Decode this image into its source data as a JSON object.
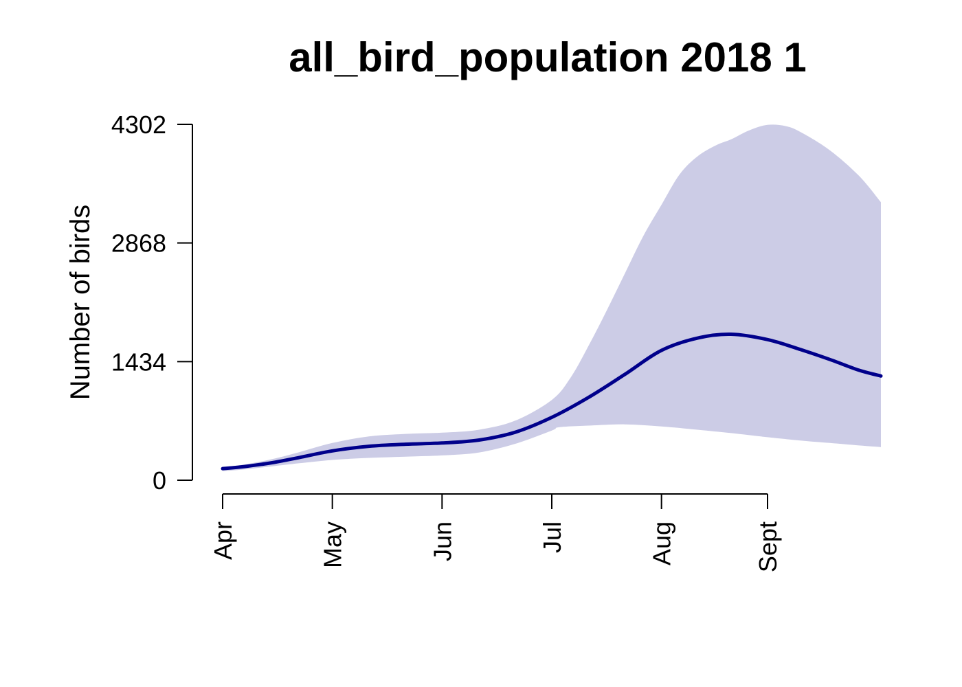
{
  "chart_data": {
    "type": "area",
    "title": "all_bird_population 2018 1",
    "xlabel": "",
    "ylabel": "Number of birds",
    "x_axis": {
      "type": "date",
      "range": [
        "2018-04-01",
        "2018-09-28"
      ],
      "ticks": [
        {
          "label": "Apr",
          "date": "2018-04-01"
        },
        {
          "label": "May",
          "date": "2018-05-01"
        },
        {
          "label": "Jun",
          "date": "2018-05-31"
        },
        {
          "label": "Jul",
          "date": "2018-06-30"
        },
        {
          "label": "Aug",
          "date": "2018-07-30"
        },
        {
          "label": "Sept",
          "date": "2018-08-28"
        }
      ]
    },
    "y_axis": {
      "ylim": [
        0,
        4302
      ],
      "ticks": [
        0,
        1434,
        2868,
        4302
      ]
    },
    "grid": false,
    "legend": "none",
    "colors": {
      "line": "#00008b",
      "band": "#ccccE6"
    },
    "series": [
      {
        "role": "estimate",
        "x": [
          "2018-04-01",
          "2018-04-07",
          "2018-04-15",
          "2018-04-22",
          "2018-05-01",
          "2018-05-11",
          "2018-05-21",
          "2018-05-31",
          "2018-06-10",
          "2018-06-20",
          "2018-06-30",
          "2018-07-10",
          "2018-07-20",
          "2018-07-30",
          "2018-08-09",
          "2018-08-18",
          "2018-08-28",
          "2018-09-06",
          "2018-09-14",
          "2018-09-22",
          "2018-09-28"
        ],
        "y": [
          140,
          165,
          215,
          275,
          355,
          410,
          435,
          450,
          485,
          580,
          760,
          1000,
          1280,
          1570,
          1720,
          1765,
          1700,
          1580,
          1460,
          1330,
          1260
        ]
      },
      {
        "role": "lower",
        "x": [
          "2018-04-01",
          "2018-04-07",
          "2018-04-15",
          "2018-04-22",
          "2018-05-01",
          "2018-05-11",
          "2018-05-21",
          "2018-05-31",
          "2018-06-10",
          "2018-06-20",
          "2018-06-30",
          "2018-07-02",
          "2018-07-10",
          "2018-07-20",
          "2018-07-30",
          "2018-08-09",
          "2018-08-18",
          "2018-08-28",
          "2018-09-06",
          "2018-09-14",
          "2018-09-22",
          "2018-09-28"
        ],
        "y": [
          110,
          130,
          170,
          205,
          245,
          270,
          285,
          300,
          335,
          440,
          600,
          640,
          660,
          675,
          650,
          610,
          570,
          520,
          480,
          450,
          420,
          400
        ]
      },
      {
        "role": "upper",
        "x": [
          "2018-04-01",
          "2018-04-07",
          "2018-04-15",
          "2018-04-22",
          "2018-05-01",
          "2018-05-11",
          "2018-05-21",
          "2018-05-31",
          "2018-06-10",
          "2018-06-20",
          "2018-06-30",
          "2018-07-05",
          "2018-07-10",
          "2018-07-15",
          "2018-07-20",
          "2018-07-25",
          "2018-07-30",
          "2018-08-04",
          "2018-08-09",
          "2018-08-14",
          "2018-08-18",
          "2018-08-23",
          "2018-08-28",
          "2018-09-02",
          "2018-09-06",
          "2018-09-14",
          "2018-09-22",
          "2018-09-28"
        ],
        "y": [
          160,
          190,
          260,
          340,
          450,
          530,
          560,
          575,
          610,
          720,
          970,
          1230,
          1620,
          2050,
          2500,
          2950,
          3330,
          3700,
          3920,
          4050,
          4120,
          4230,
          4295,
          4280,
          4210,
          3990,
          3680,
          3360
        ]
      }
    ]
  }
}
